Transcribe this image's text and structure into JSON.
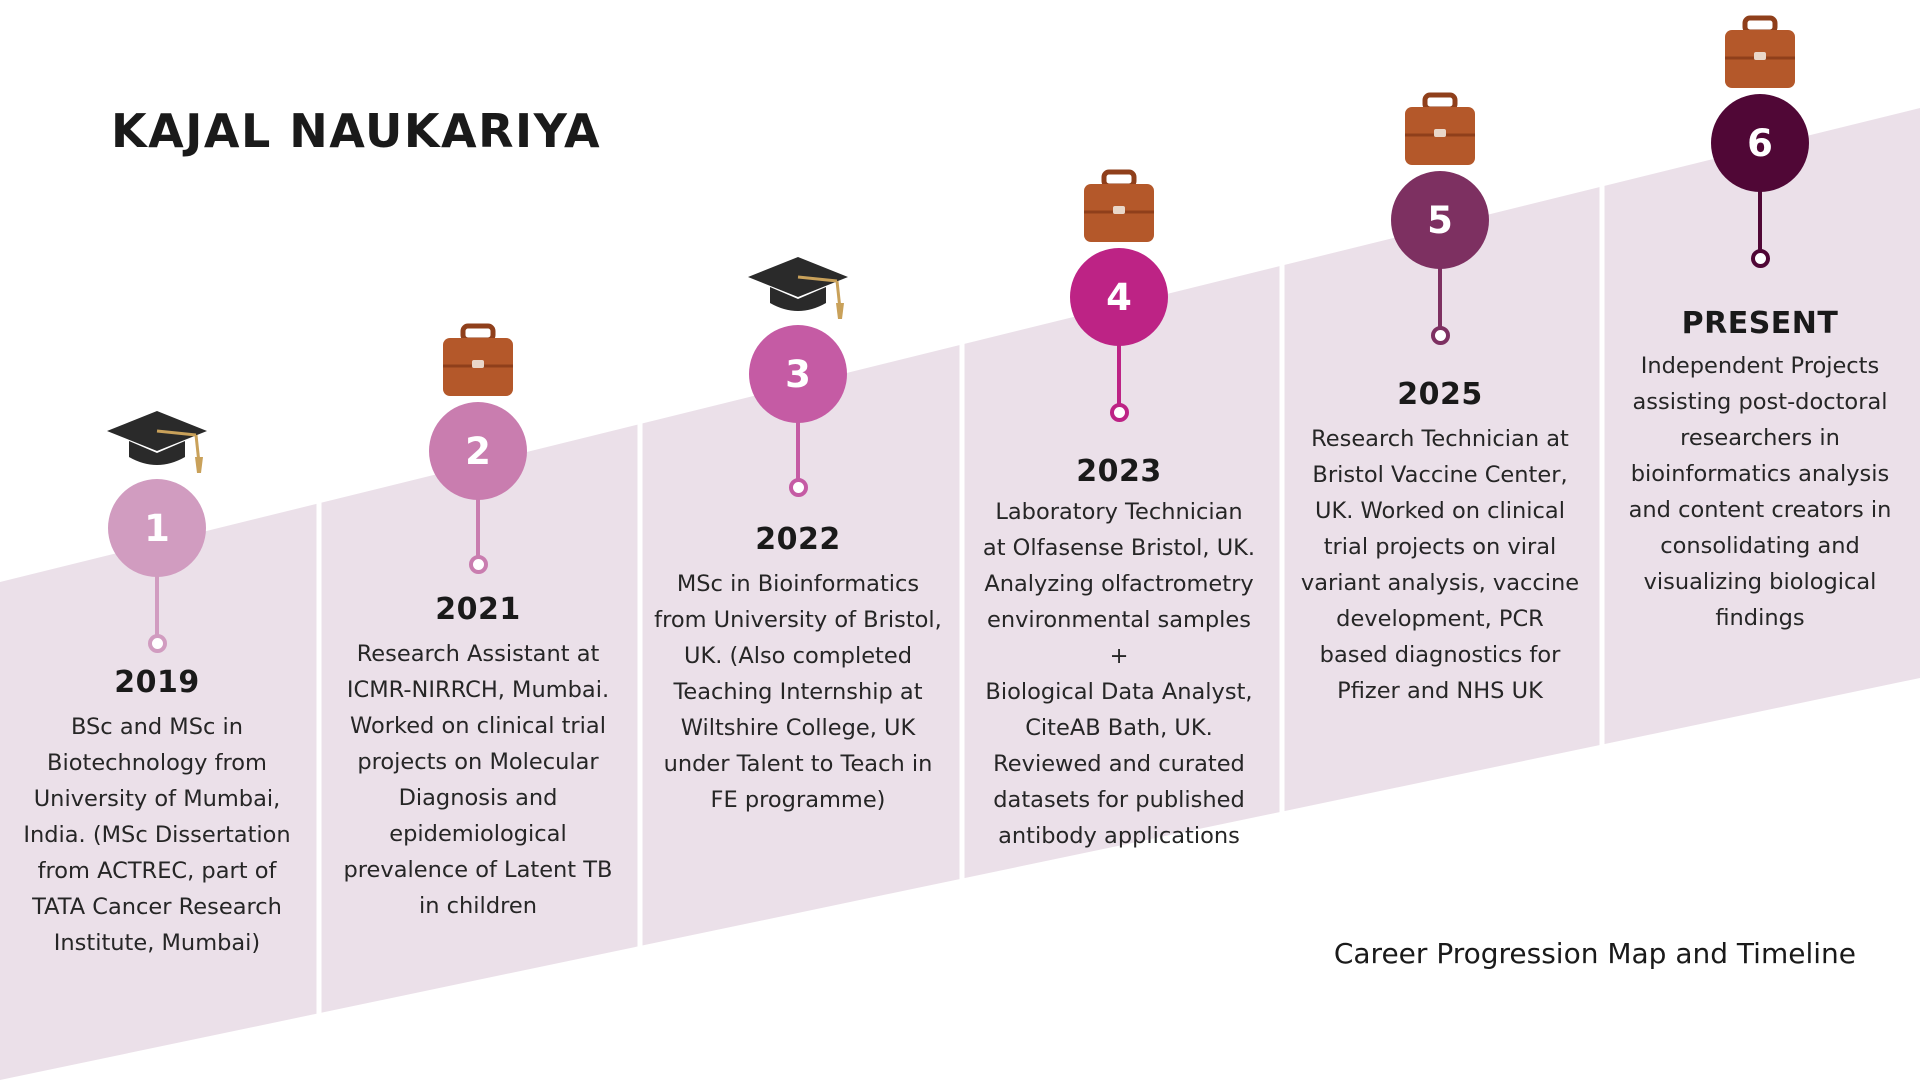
{
  "title": "KAJAL NAUKARIYA",
  "footer": "Career Progression Map and Timeline",
  "colors": {
    "band": "#ebe0e9",
    "hat": "#2a2a2a",
    "hat_tassel": "#c9a15a",
    "briefcase": "#b4582a",
    "briefcase_dark": "#8f3f1b"
  },
  "milestones": [
    {
      "number": "1",
      "year": "2019",
      "icon": "graduation-cap-icon",
      "color": "#d19cc0",
      "description": "BSc and MSc in\nBiotechnology from\nUniversity of Mumbai,\nIndia. (MSc Dissertation\nfrom ACTREC, part of\nTATA Cancer Research\nInstitute, Mumbai)"
    },
    {
      "number": "2",
      "year": "2021",
      "icon": "briefcase-icon",
      "color": "#c97daf",
      "description": "Research Assistant at\nICMR-NIRRCH, Mumbai.\nWorked on clinical trial\nprojects on Molecular\nDiagnosis and\nepidemiological\nprevalence of Latent TB\nin children"
    },
    {
      "number": "3",
      "year": "2022",
      "icon": "graduation-cap-icon",
      "color": "#c55ba4",
      "description": "MSc in Bioinformatics\nfrom University of Bristol,\nUK. (Also completed\nTeaching Internship at\nWiltshire College, UK\nunder Talent to Teach in\nFE programme)"
    },
    {
      "number": "4",
      "year": "2023",
      "icon": "briefcase-icon",
      "color": "#bd2385",
      "description": "Laboratory Technician\nat Olfasense Bristol, UK.\nAnalyzing olfactrometry\nenvironmental samples\n+\nBiological Data Analyst,\nCiteAB Bath, UK.\nReviewed and curated\ndatasets for published\nantibody applications"
    },
    {
      "number": "5",
      "year": "2025",
      "icon": "briefcase-icon",
      "color": "#7d3061",
      "description": "Research Technician at\nBristol Vaccine Center,\nUK. Worked on clinical\ntrial projects on viral\nvariant analysis, vaccine\ndevelopment, PCR\nbased diagnostics for\nPfizer and NHS UK"
    },
    {
      "number": "6",
      "year": "PRESENT",
      "icon": "briefcase-icon",
      "color": "#500736",
      "description": "Independent Projects\nassisting post-doctoral\nresearchers in\nbioinformatics analysis\nand content creators in\nconsolidating and\nvisualizing biological\nfindings"
    }
  ]
}
